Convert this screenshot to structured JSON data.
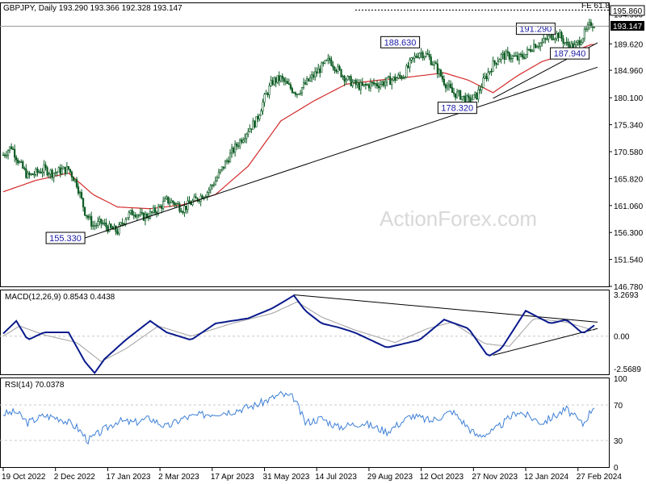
{
  "app": {
    "symbol_header": "GBPJPY, Daily  193.290 193.366 192.328 193.147",
    "watermark": "ActionForex.com",
    "fib_label": "FE 61.8",
    "fib_level": "195.860",
    "last_price": "193.147",
    "colors": {
      "candle": "#0d5c24",
      "ma": "#d42a2a",
      "macd": "#0a1a8c",
      "signal": "#a0a0a0",
      "rsi": "#3d7fd6",
      "label_text": "#1a1aa6",
      "grid": "#c8c8c8"
    }
  },
  "chart_data": [
    {
      "type": "candlestick",
      "title": "GBPJPY, Daily",
      "y_ticks": [
        "194.900",
        "189.620",
        "184.960",
        "180.100",
        "175.340",
        "170.580",
        "165.820",
        "161.060",
        "156.300",
        "151.540",
        "146.780"
      ],
      "ylim": [
        146.78,
        196.8
      ],
      "x_ticks": [
        "19 Oct 2022",
        "2 Dec 2022",
        "17 Jan 2023",
        "2 Mar 2023",
        "17 Apr 2023",
        "31 May 2023",
        "14 Jul 2023",
        "29 Aug 2023",
        "12 Oct 2023",
        "27 Nov 2023",
        "12 Jan 2024",
        "27 Feb 2024"
      ],
      "close_path": [
        [
          0,
          170.0
        ],
        [
          5,
          171.5
        ],
        [
          10,
          168.5
        ],
        [
          15,
          166.2
        ],
        [
          20,
          166.8
        ],
        [
          25,
          167.5
        ],
        [
          30,
          166.8
        ],
        [
          35,
          167.2
        ],
        [
          40,
          167.5
        ],
        [
          45,
          165.0
        ],
        [
          50,
          160.0
        ],
        [
          55,
          157.5
        ],
        [
          60,
          158.0
        ],
        [
          65,
          157.0
        ],
        [
          70,
          156.5
        ],
        [
          75,
          159.0
        ],
        [
          80,
          160.0
        ],
        [
          85,
          159.0
        ],
        [
          90,
          159.5
        ],
        [
          95,
          160.5
        ],
        [
          100,
          162.0
        ],
        [
          105,
          161.5
        ],
        [
          110,
          160.5
        ],
        [
          115,
          161.5
        ],
        [
          120,
          162.5
        ],
        [
          125,
          163.5
        ],
        [
          130,
          165.5
        ],
        [
          135,
          168.0
        ],
        [
          140,
          170.5
        ],
        [
          145,
          172.5
        ],
        [
          150,
          174.5
        ],
        [
          155,
          176.0
        ],
        [
          160,
          180.0
        ],
        [
          165,
          183.0
        ],
        [
          170,
          183.5
        ],
        [
          175,
          182.0
        ],
        [
          180,
          181.0
        ],
        [
          185,
          182.5
        ],
        [
          190,
          184.0
        ],
        [
          195,
          185.5
        ],
        [
          200,
          186.8
        ],
        [
          205,
          185.0
        ],
        [
          210,
          183.5
        ],
        [
          215,
          182.5
        ],
        [
          220,
          182.0
        ],
        [
          225,
          182.5
        ],
        [
          230,
          182.5
        ],
        [
          235,
          183.0
        ],
        [
          240,
          183.5
        ],
        [
          245,
          184.0
        ],
        [
          250,
          186.5
        ],
        [
          255,
          188.2
        ],
        [
          260,
          187.5
        ],
        [
          265,
          185.5
        ],
        [
          270,
          183.0
        ],
        [
          275,
          181.0
        ],
        [
          280,
          180.5
        ],
        [
          285,
          179.5
        ],
        [
          290,
          180.5
        ],
        [
          295,
          183.5
        ],
        [
          300,
          186.0
        ],
        [
          305,
          187.5
        ],
        [
          310,
          187.5
        ],
        [
          315,
          187.0
        ],
        [
          320,
          187.8
        ],
        [
          325,
          189.5
        ],
        [
          330,
          189.8
        ],
        [
          335,
          191.0
        ],
        [
          340,
          191.3
        ],
        [
          345,
          189.5
        ],
        [
          350,
          189.0
        ],
        [
          355,
          191.0
        ],
        [
          360,
          193.15
        ]
      ],
      "ma_path": [
        [
          0,
          163.5
        ],
        [
          20,
          165.5
        ],
        [
          40,
          166.8
        ],
        [
          55,
          163.0
        ],
        [
          70,
          160.8
        ],
        [
          90,
          160.5
        ],
        [
          110,
          161.2
        ],
        [
          130,
          163.0
        ],
        [
          150,
          168.0
        ],
        [
          170,
          176.0
        ],
        [
          190,
          179.5
        ],
        [
          210,
          182.5
        ],
        [
          230,
          183.2
        ],
        [
          250,
          183.8
        ],
        [
          270,
          184.5
        ],
        [
          285,
          183.2
        ],
        [
          300,
          181.0
        ],
        [
          315,
          184.0
        ],
        [
          330,
          186.5
        ],
        [
          345,
          187.8
        ],
        [
          360,
          189.5
        ]
      ],
      "trendlines": [
        {
          "from": [
            50,
            155.33
          ],
          "to": [
            364,
            185.5
          ]
        },
        {
          "from": [
            300,
            180.0
          ],
          "to": [
            364,
            189.8
          ]
        }
      ],
      "annotations": [
        {
          "text": "155.330",
          "x": 50,
          "y": 155.33
        },
        {
          "text": "188.630",
          "x": 255,
          "y": 188.63
        },
        {
          "text": "178.320",
          "x": 290,
          "y": 178.32
        },
        {
          "text": "191.290",
          "x": 338,
          "y": 191.29
        },
        {
          "text": "187.940",
          "x": 345,
          "y": 187.94
        }
      ]
    },
    {
      "type": "line",
      "title": "MACD(12,26,9) 0.8543 0.4438",
      "y_ticks": [
        "3.2693",
        "0.00",
        "-2.5689"
      ],
      "ylim": [
        -3.0,
        3.6
      ],
      "series": [
        {
          "name": "MACD",
          "points": [
            [
              0,
              0.2
            ],
            [
              8,
              1.2
            ],
            [
              15,
              -0.3
            ],
            [
              25,
              0.3
            ],
            [
              40,
              0.3
            ],
            [
              50,
              -2.0
            ],
            [
              56,
              -2.9
            ],
            [
              62,
              -1.8
            ],
            [
              75,
              -0.3
            ],
            [
              90,
              1.2
            ],
            [
              100,
              0.3
            ],
            [
              115,
              -0.3
            ],
            [
              130,
              1.0
            ],
            [
              150,
              1.4
            ],
            [
              165,
              2.2
            ],
            [
              178,
              3.2
            ],
            [
              185,
              2.0
            ],
            [
              195,
              1.0
            ],
            [
              205,
              0.7
            ],
            [
              215,
              0.3
            ],
            [
              235,
              -0.9
            ],
            [
              255,
              -0.3
            ],
            [
              270,
              1.3
            ],
            [
              285,
              0.6
            ],
            [
              297,
              -1.6
            ],
            [
              305,
              -1.0
            ],
            [
              320,
              2.0
            ],
            [
              335,
              1.0
            ],
            [
              345,
              1.3
            ],
            [
              355,
              0.2
            ],
            [
              362,
              0.85
            ]
          ]
        },
        {
          "name": "Signal",
          "points": [
            [
              0,
              0.0
            ],
            [
              10,
              0.8
            ],
            [
              25,
              0.1
            ],
            [
              45,
              -0.5
            ],
            [
              60,
              -2.0
            ],
            [
              75,
              -1.0
            ],
            [
              95,
              0.8
            ],
            [
              115,
              0.0
            ],
            [
              140,
              1.0
            ],
            [
              165,
              1.8
            ],
            [
              180,
              2.7
            ],
            [
              195,
              1.5
            ],
            [
              215,
              0.5
            ],
            [
              240,
              -0.5
            ],
            [
              260,
              0.6
            ],
            [
              275,
              1.1
            ],
            [
              295,
              -0.6
            ],
            [
              310,
              -0.8
            ],
            [
              325,
              1.4
            ],
            [
              345,
              1.1
            ],
            [
              362,
              0.44
            ]
          ]
        }
      ],
      "trendlines": [
        {
          "from": [
            178,
            3.25
          ],
          "to": [
            364,
            1.1
          ]
        },
        {
          "from": [
            300,
            -1.5
          ],
          "to": [
            364,
            0.6
          ]
        }
      ]
    },
    {
      "type": "line",
      "title": "RSI(14) 70.0378",
      "y_ticks": [
        "100",
        "70",
        "30",
        "0"
      ],
      "ylim": [
        0,
        100
      ],
      "levels": [
        70,
        30
      ],
      "series": [
        {
          "name": "RSI",
          "points": [
            [
              0,
              60
            ],
            [
              8,
              62
            ],
            [
              15,
              50
            ],
            [
              25,
              58
            ],
            [
              35,
              55
            ],
            [
              45,
              45
            ],
            [
              52,
              30
            ],
            [
              60,
              40
            ],
            [
              70,
              52
            ],
            [
              80,
              50
            ],
            [
              90,
              55
            ],
            [
              100,
              45
            ],
            [
              110,
              55
            ],
            [
              125,
              60
            ],
            [
              140,
              63
            ],
            [
              155,
              70
            ],
            [
              170,
              82
            ],
            [
              178,
              78
            ],
            [
              185,
              50
            ],
            [
              195,
              55
            ],
            [
              205,
              45
            ],
            [
              220,
              50
            ],
            [
              235,
              40
            ],
            [
              250,
              58
            ],
            [
              262,
              52
            ],
            [
              275,
              63
            ],
            [
              290,
              35
            ],
            [
              300,
              40
            ],
            [
              315,
              63
            ],
            [
              330,
              50
            ],
            [
              345,
              65
            ],
            [
              355,
              48
            ],
            [
              362,
              70
            ]
          ]
        }
      ]
    }
  ]
}
